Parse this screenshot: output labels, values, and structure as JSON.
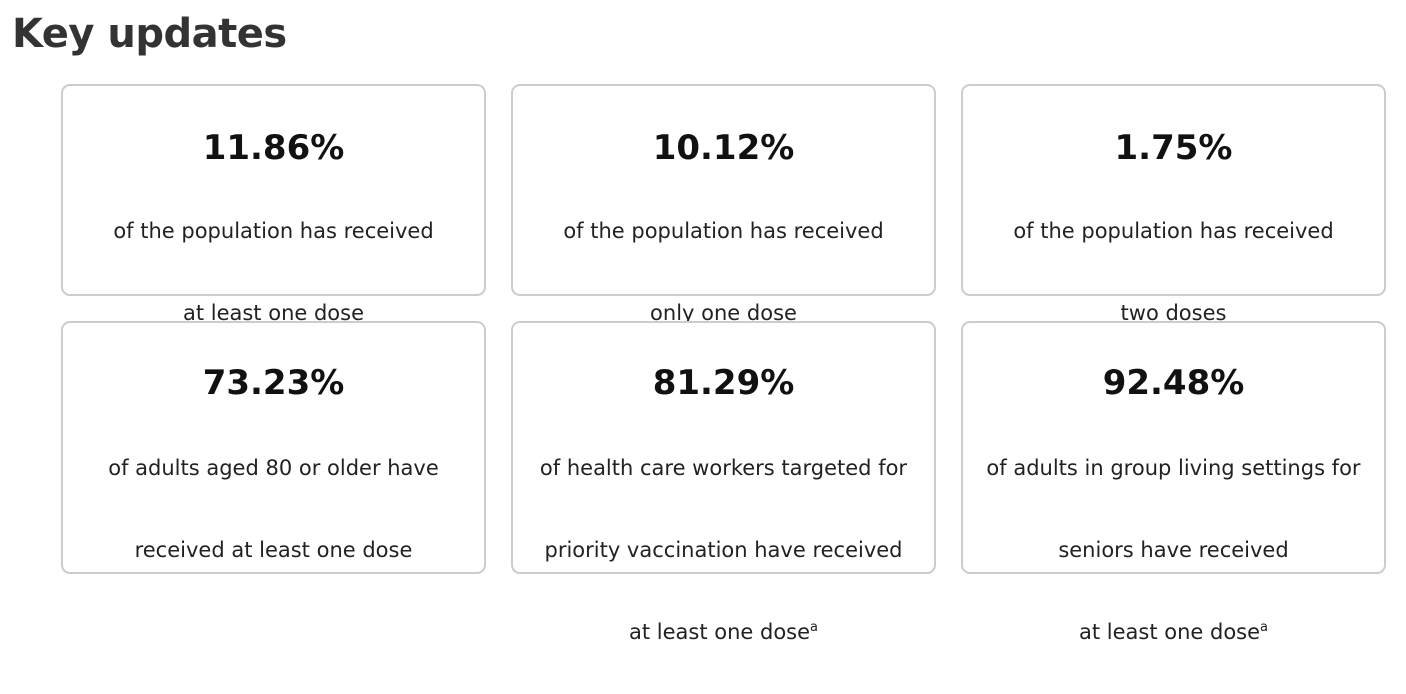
{
  "page": {
    "title": "Key updates"
  },
  "cards": [
    {
      "value": "11.86%",
      "lines": [
        "of the population has received",
        "at least one dose"
      ],
      "footnote": ""
    },
    {
      "value": "10.12%",
      "lines": [
        "of the population has received",
        "only one dose"
      ],
      "footnote": ""
    },
    {
      "value": "1.75%",
      "lines": [
        "of the population has received",
        "two doses"
      ],
      "footnote": ""
    },
    {
      "value": "73.23%",
      "lines": [
        "of adults aged 80 or older have",
        "received at least one dose"
      ],
      "footnote": ""
    },
    {
      "value": "81.29%",
      "lines": [
        "of health care workers targeted for",
        "priority vaccination have received",
        "at least one dose"
      ],
      "footnote": "a"
    },
    {
      "value": "92.48%",
      "lines": [
        "of adults in group living settings for",
        "seniors have received",
        "at least one dose"
      ],
      "footnote": "a"
    }
  ]
}
